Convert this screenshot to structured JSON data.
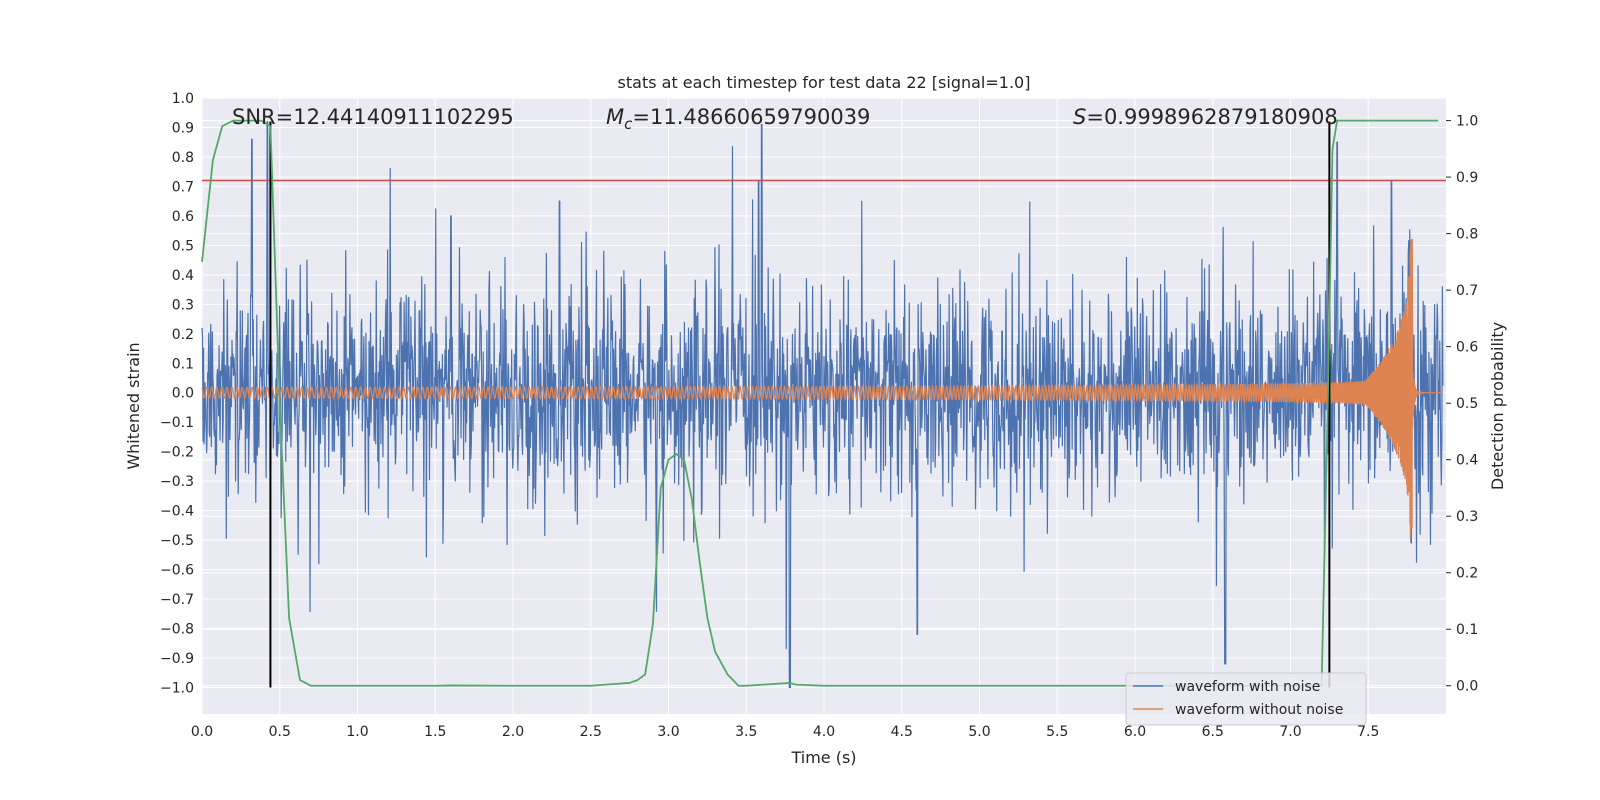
{
  "chart_data": {
    "type": "line",
    "title": "stats at each timestep for test data 22 [signal=1.0]",
    "xlabel": "Time (s)",
    "ylabel": "Whitened strain",
    "y2label": "Detection probability",
    "xlim": [
      0.0,
      8.0
    ],
    "ylim": [
      -1.09,
      1.0
    ],
    "y2lim": [
      -0.05,
      1.04
    ],
    "x_ticks": [
      "0.0",
      "0.5",
      "1.0",
      "1.5",
      "2.0",
      "2.5",
      "3.0",
      "3.5",
      "4.0",
      "4.5",
      "5.0",
      "5.5",
      "6.0",
      "6.5",
      "7.0",
      "7.5"
    ],
    "y_ticks": [
      "1.0",
      "0.9",
      "0.8",
      "0.7",
      "0.6",
      "0.5",
      "0.4",
      "0.3",
      "0.2",
      "0.1",
      "0.0",
      "−0.1",
      "−0.2",
      "−0.3",
      "−0.4",
      "−0.5",
      "−0.6",
      "−0.7",
      "−0.8",
      "−0.9",
      "−1.0"
    ],
    "y2_ticks": [
      "1.0",
      "0.9",
      "0.8",
      "0.7",
      "0.6",
      "0.5",
      "0.4",
      "0.3",
      "0.2",
      "0.1",
      "0.0"
    ],
    "annotations": {
      "snr": "SNR=12.44140911102295",
      "mc_symbol": "M",
      "mc_sub": "c",
      "mc_value": "=11.48660659790039",
      "s_symbol": "S",
      "s_value": "=0.9998962879180908"
    },
    "threshold_line": {
      "y": 0.72,
      "color": "#c44e52"
    },
    "vertical_markers": [
      0.44,
      7.25
    ],
    "series": [
      {
        "name": "waveform with noise",
        "color": "#4c72b0",
        "axis": "left",
        "description": "noisy whitened strain, spans 0 to 8 s",
        "envelope_spikes": [
          [
            0.32,
            0.86
          ],
          [
            0.42,
            0.92
          ],
          [
            1.6,
            0.6
          ],
          [
            2.3,
            0.65
          ],
          [
            3.58,
            0.72
          ],
          [
            3.6,
            0.91
          ],
          [
            3.78,
            -1.0
          ],
          [
            4.6,
            -0.82
          ],
          [
            6.58,
            -0.92
          ],
          [
            7.3,
            0.85
          ],
          [
            7.65,
            0.72
          ]
        ]
      },
      {
        "name": "waveform without noise",
        "color": "#dd8452",
        "axis": "left",
        "description": "chirp signal, merger near 7.78 s",
        "merger_time": 7.78,
        "peak_amplitude": 0.52,
        "min_amplitude": -0.46
      },
      {
        "name": "detection probability",
        "color": "#55a868",
        "axis": "right",
        "x": [
          0.0,
          0.07,
          0.13,
          0.2,
          0.3,
          0.38,
          0.44,
          0.5,
          0.56,
          0.63,
          0.7,
          1.0,
          1.5,
          1.6,
          2.0,
          2.5,
          2.75,
          2.8,
          2.85,
          2.9,
          2.95,
          3.0,
          3.05,
          3.1,
          3.15,
          3.2,
          3.25,
          3.3,
          3.38,
          3.45,
          3.5,
          3.78,
          3.82,
          4.0,
          5.0,
          6.0,
          7.0,
          7.2,
          7.24,
          7.27,
          7.3,
          7.4,
          7.95
        ],
        "y": [
          0.75,
          0.93,
          0.99,
          1.0,
          1.0,
          1.0,
          0.99,
          0.5,
          0.12,
          0.01,
          0.0,
          0.0,
          0.0,
          0.0005,
          0.0,
          0.0,
          0.005,
          0.01,
          0.02,
          0.11,
          0.35,
          0.4,
          0.41,
          0.4,
          0.33,
          0.22,
          0.12,
          0.06,
          0.02,
          0.0,
          0.0,
          0.005,
          0.002,
          0.0,
          0.0,
          0.0,
          0.0,
          0.0,
          0.5,
          0.95,
          1.0,
          1.0,
          1.0
        ]
      }
    ],
    "legend": {
      "position": "lower-right",
      "entries": [
        {
          "label": "waveform with noise",
          "color": "#4c72b0"
        },
        {
          "label": "waveform without noise",
          "color": "#dd8452"
        }
      ]
    },
    "grid": true
  }
}
